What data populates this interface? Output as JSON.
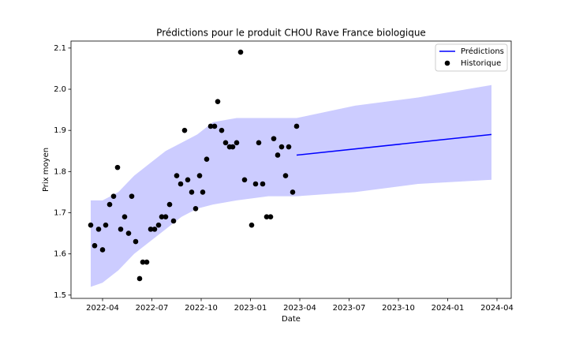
{
  "chart_data": {
    "type": "line",
    "title": "Prédictions pour le produit CHOU Rave France biologique",
    "xlabel": "Date",
    "ylabel": "Prix moyen",
    "xlim": [
      2022.09,
      2024.322
    ],
    "ylim": [
      1.492,
      2.117
    ],
    "xticks": [
      {
        "value": 2022.25,
        "label": "2022-04"
      },
      {
        "value": 2022.5,
        "label": "2022-07"
      },
      {
        "value": 2022.75,
        "label": "2022-10"
      },
      {
        "value": 2023.0,
        "label": "2023-01"
      },
      {
        "value": 2023.25,
        "label": "2023-04"
      },
      {
        "value": 2023.5,
        "label": "2023-07"
      },
      {
        "value": 2023.75,
        "label": "2023-10"
      },
      {
        "value": 2024.0,
        "label": "2024-01"
      },
      {
        "value": 2024.25,
        "label": "2024-04"
      }
    ],
    "yticks": [
      1.5,
      1.6,
      1.7,
      1.8,
      1.9,
      {
        "value": 2,
        "label": "2.0"
      },
      2.1
    ],
    "legend": "upper right",
    "band": {
      "color": "#ccccff",
      "x": [
        2022.19,
        2022.25,
        2022.33,
        2022.41,
        2022.49,
        2022.57,
        2022.65,
        2022.73,
        2022.81,
        2022.93,
        2023.09,
        2023.234,
        2023.53,
        2023.85,
        2024.222
      ],
      "upper": [
        1.73,
        1.73,
        1.75,
        1.79,
        1.82,
        1.85,
        1.87,
        1.89,
        1.92,
        1.93,
        1.93,
        1.93,
        1.96,
        1.98,
        2.01
      ],
      "lower": [
        1.52,
        1.53,
        1.56,
        1.6,
        1.63,
        1.66,
        1.69,
        1.71,
        1.72,
        1.73,
        1.74,
        1.74,
        1.75,
        1.77,
        1.78
      ]
    },
    "series": [
      {
        "name": "Prédictions",
        "color": "#0000ff",
        "style": "line",
        "x": [
          2023.234,
          2024.222
        ],
        "values": [
          1.84,
          1.89
        ]
      },
      {
        "name": "Historique",
        "color": "#000000",
        "style": "points",
        "x": [
          2022.19,
          2022.21,
          2022.23,
          2022.25,
          2022.266,
          2022.286,
          2022.306,
          2022.326,
          2022.342,
          2022.362,
          2022.382,
          2022.398,
          2022.418,
          2022.438,
          2022.454,
          2022.474,
          2022.494,
          2022.514,
          2022.534,
          2022.55,
          2022.57,
          2022.59,
          2022.61,
          2022.626,
          2022.646,
          2022.666,
          2022.682,
          2022.702,
          2022.722,
          2022.742,
          2022.758,
          2022.778,
          2022.798,
          2022.818,
          2022.834,
          2022.854,
          2022.874,
          2022.894,
          2022.91,
          2022.93,
          2022.95,
          2022.97,
          2023.006,
          2023.026,
          2023.042,
          2023.062,
          2023.082,
          2023.102,
          2023.118,
          2023.138,
          2023.158,
          2023.178,
          2023.194,
          2023.214,
          2023.234
        ],
        "values": [
          1.67,
          1.62,
          1.66,
          1.61,
          1.67,
          1.72,
          1.74,
          1.81,
          1.66,
          1.69,
          1.65,
          1.74,
          1.63,
          1.54,
          1.58,
          1.58,
          1.66,
          1.66,
          1.67,
          1.69,
          1.69,
          1.72,
          1.68,
          1.79,
          1.77,
          1.9,
          1.78,
          1.75,
          1.71,
          1.79,
          1.75,
          1.83,
          1.91,
          1.91,
          1.97,
          1.9,
          1.87,
          1.86,
          1.86,
          1.87,
          2.09,
          1.78,
          1.67,
          1.77,
          1.87,
          1.77,
          1.69,
          1.69,
          1.88,
          1.84,
          1.86,
          1.79,
          1.86,
          1.75,
          1.91
        ]
      }
    ]
  }
}
